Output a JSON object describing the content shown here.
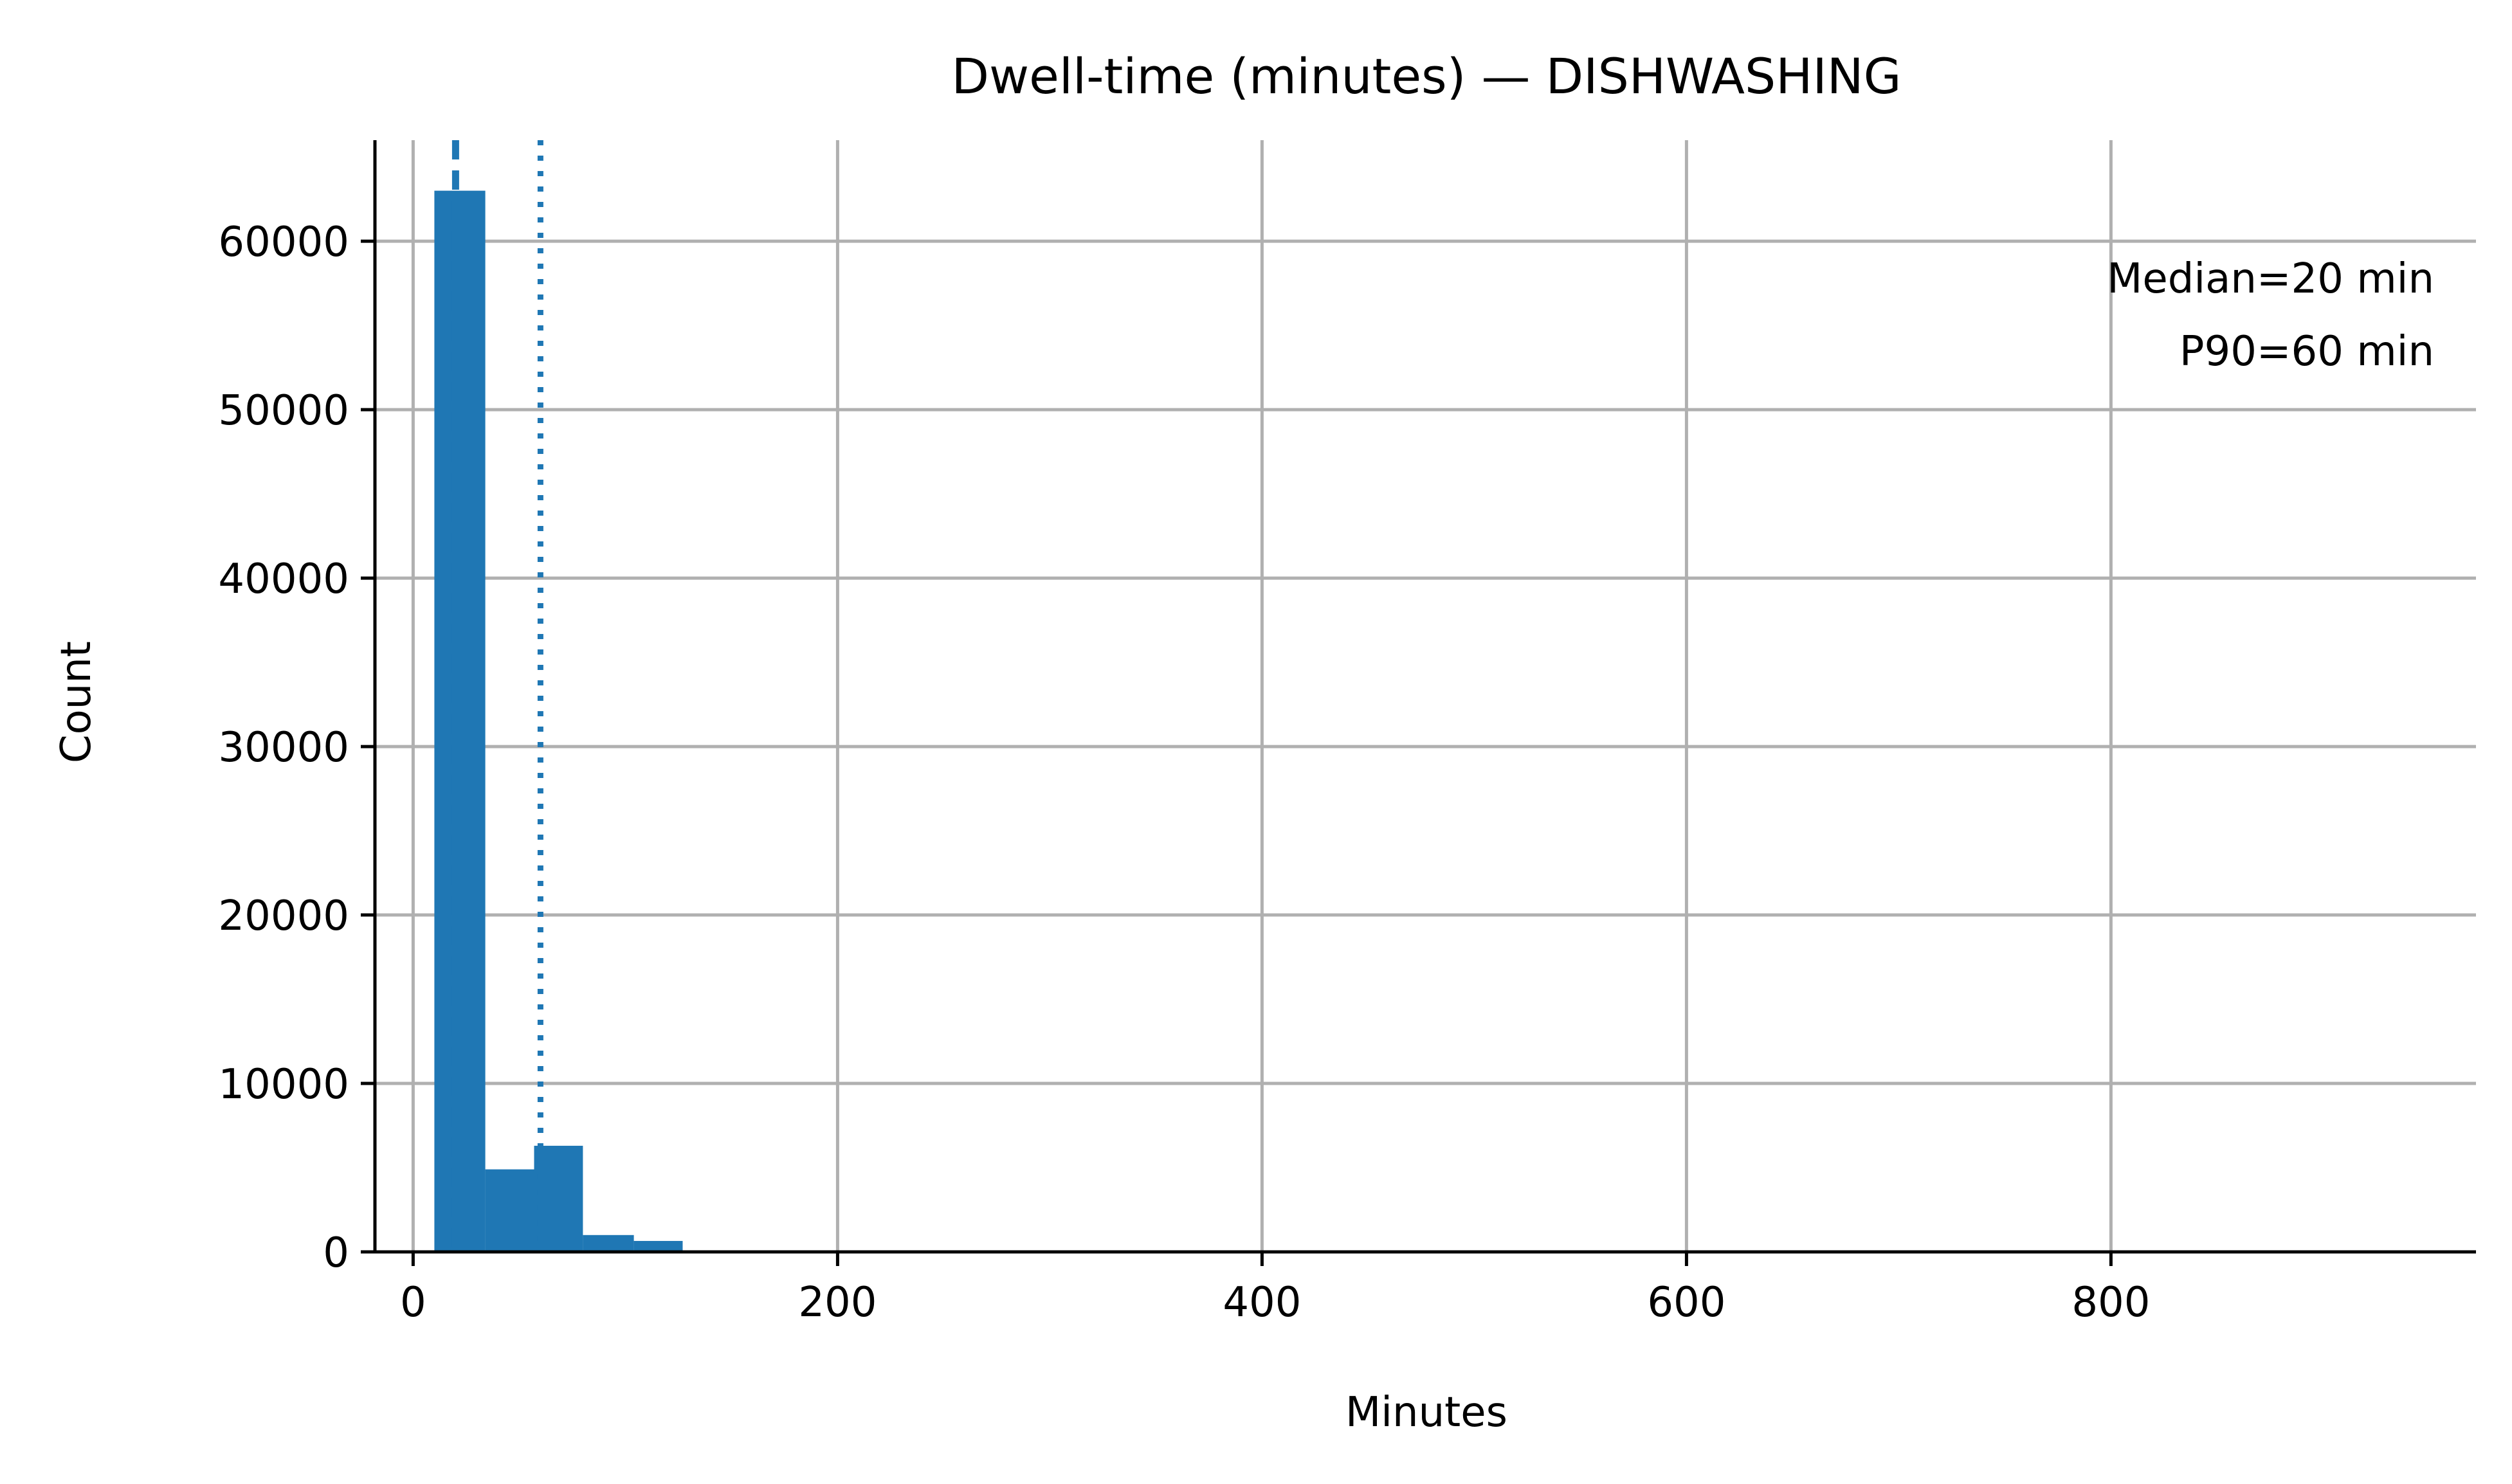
{
  "chart_data": {
    "type": "bar",
    "title": "Dwell-time (minutes) — DISHWASHING",
    "xlabel": "Minutes",
    "ylabel": "Count",
    "xlim": [
      -18,
      972
    ],
    "ylim": [
      0,
      66000
    ],
    "xticks": [
      0,
      200,
      400,
      600,
      800
    ],
    "yticks": [
      0,
      10000,
      20000,
      30000,
      40000,
      50000,
      60000
    ],
    "grid": true,
    "color": "#1f77b4",
    "bins": [
      {
        "x0": 10,
        "x1": 34,
        "count": 63000
      },
      {
        "x0": 34,
        "x1": 57,
        "count": 4900
      },
      {
        "x0": 57,
        "x1": 80,
        "count": 6300
      },
      {
        "x0": 80,
        "x1": 104,
        "count": 1000
      },
      {
        "x0": 104,
        "x1": 127,
        "count": 650
      }
    ],
    "reference_lines": [
      {
        "name": "median",
        "x": 20,
        "style": "dashed"
      },
      {
        "name": "p90",
        "x": 60,
        "style": "dotted"
      }
    ],
    "annotation": {
      "lines": [
        "Median=20 min",
        "P90=60 min"
      ],
      "placement": "top-right"
    }
  }
}
